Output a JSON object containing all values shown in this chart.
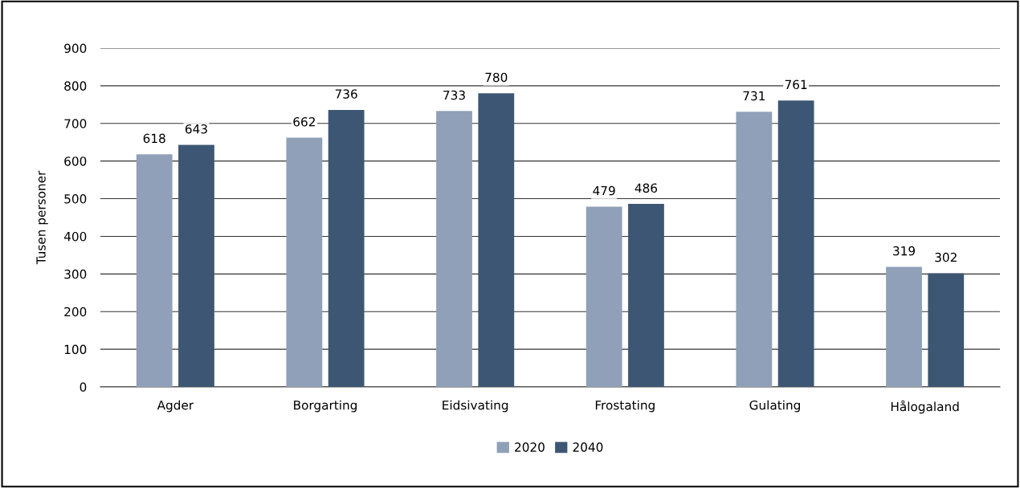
{
  "chart_data": {
    "type": "bar",
    "ylabel": "Tusen personer",
    "categories": [
      "Agder",
      "Borgarting",
      "Eidsivating",
      "Frostating",
      "Gulating",
      "Hålogaland"
    ],
    "series": [
      {
        "name": "2020",
        "color": "#8fa0b8",
        "values": [
          618,
          662,
          733,
          479,
          731,
          319
        ]
      },
      {
        "name": "2040",
        "color": "#3d5673",
        "values": [
          643,
          736,
          780,
          486,
          761,
          302
        ]
      }
    ],
    "ylim": [
      0,
      900
    ],
    "yticks": [
      0,
      100,
      200,
      300,
      400,
      500,
      600,
      700,
      800,
      900
    ],
    "grid": "y",
    "legend": "bottom",
    "data_labels": true
  }
}
